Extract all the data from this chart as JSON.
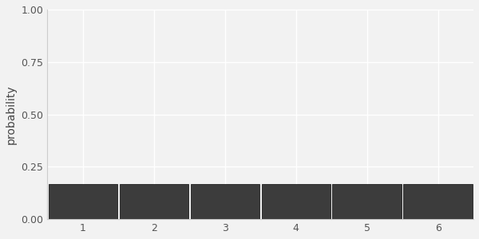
{
  "categories": [
    1,
    2,
    3,
    4,
    5,
    6
  ],
  "values": [
    0.1667,
    0.1667,
    0.1667,
    0.1667,
    0.1667,
    0.1667
  ],
  "bar_color": "#3c3c3c",
  "bar_edgecolor": "#222222",
  "ylabel": "probability",
  "ylim": [
    0,
    1.0
  ],
  "yticks": [
    0.0,
    0.25,
    0.5,
    0.75,
    1.0
  ],
  "xlim": [
    0.5,
    6.5
  ],
  "xticks": [
    1,
    2,
    3,
    4,
    5,
    6
  ],
  "background_color": "#f2f2f2",
  "grid_color": "#ffffff",
  "bar_width": 0.97,
  "tick_labelsize": 9,
  "ylabel_fontsize": 10,
  "figsize": [
    6.0,
    3.0
  ],
  "dpi": 100
}
